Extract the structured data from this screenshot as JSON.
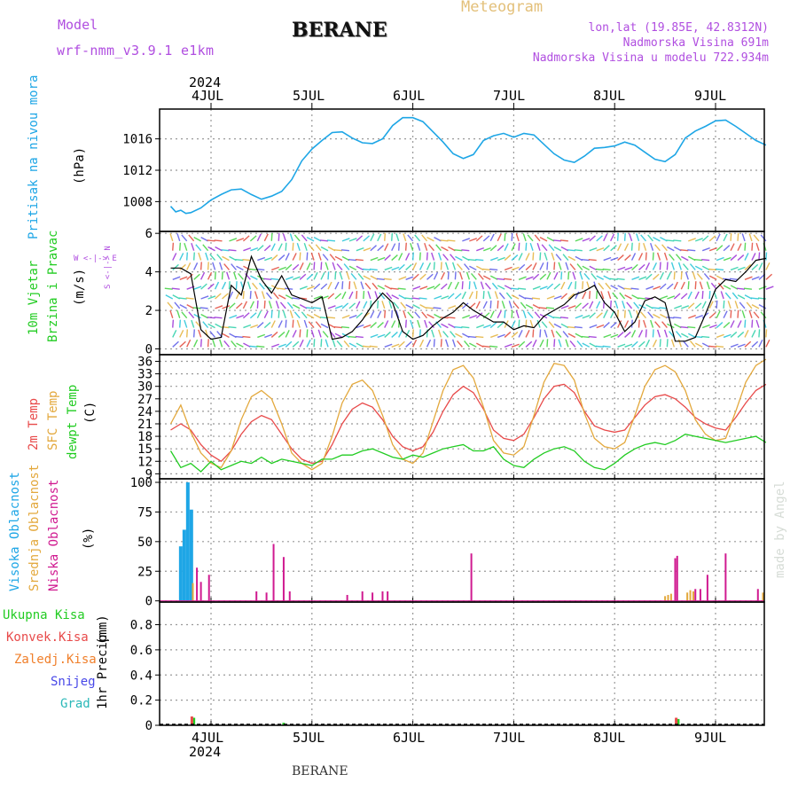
{
  "header": {
    "model_label": "Model",
    "model_name": "wrf-nmm_v3.9.1 e1km",
    "station": "BERANE",
    "meteogram_label": "Meteogram",
    "lonlat": "lon,lat (19.85E, 42.8312N)",
    "altitude": "Nadmorska Visina 691m",
    "model_altitude": "Nadmorska Visina u modelu 722.934m",
    "footer_station": "BERANE",
    "watermark": "made by Angel"
  },
  "time_axis": {
    "year": "2024",
    "day_labels": [
      "4JUL",
      "5JUL",
      "6JUL",
      "7JUL",
      "8JUL",
      "9JUL"
    ]
  },
  "colors": {
    "pressure": "#1ea6e6",
    "t2m": "#e84a4a",
    "sfc": "#e3a83c",
    "dewpt": "#22cc22",
    "high_cloud": "#1ea6e6",
    "mid_cloud": "#e3a83c",
    "low_cloud": "#d01a90",
    "total_precip": "#22cc22",
    "conv_precip": "#e84a4a",
    "frozen_precip": "#f07f2a",
    "snow": "#4848e8",
    "hail": "#2ab8b8",
    "model": "#b04ee0"
  },
  "chart_data": [
    {
      "type": "line",
      "name": "pressure",
      "ylabel": "Pritisak na nivou mora",
      "unit": "(hPa)",
      "ylim": [
        1004.2,
        1019.8
      ],
      "ticks": [
        "1008",
        "1012",
        "1016"
      ],
      "tick_values": [
        1008,
        1012,
        1016
      ],
      "x_days": [
        3.6,
        3.65,
        3.7,
        3.75,
        3.8,
        3.9,
        4.0,
        4.1,
        4.2,
        4.3,
        4.4,
        4.5,
        4.6,
        4.7,
        4.8,
        4.9,
        5.0,
        5.1,
        5.2,
        5.3,
        5.4,
        5.5,
        5.6,
        5.7,
        5.8,
        5.9,
        6.0,
        6.1,
        6.2,
        6.3,
        6.4,
        6.5,
        6.6,
        6.7,
        6.8,
        6.9,
        7.0,
        7.1,
        7.2,
        7.3,
        7.4,
        7.5,
        7.6,
        7.7,
        7.8,
        7.9,
        8.0,
        8.1,
        8.2,
        8.3,
        8.4,
        8.5,
        8.6,
        8.7,
        8.8,
        8.9,
        9.0,
        9.1,
        9.2,
        9.3,
        9.4,
        9.5
      ],
      "values": [
        1007.4,
        1006.7,
        1006.9,
        1006.5,
        1006.6,
        1007.2,
        1008.2,
        1008.9,
        1009.5,
        1009.6,
        1008.9,
        1008.3,
        1008.7,
        1009.3,
        1010.8,
        1013.2,
        1014.7,
        1015.8,
        1016.8,
        1016.9,
        1016.1,
        1015.5,
        1015.4,
        1016.0,
        1017.7,
        1018.7,
        1018.7,
        1018.2,
        1016.9,
        1015.6,
        1014.1,
        1013.5,
        1014.0,
        1015.8,
        1016.4,
        1016.7,
        1016.2,
        1016.7,
        1016.5,
        1015.3,
        1014.1,
        1013.3,
        1013.0,
        1013.8,
        1014.8,
        1014.9,
        1015.1,
        1015.6,
        1015.2,
        1014.3,
        1013.4,
        1013.1,
        1014.0,
        1016.1,
        1017.0,
        1017.6,
        1018.3,
        1018.4,
        1017.6,
        1016.7,
        1015.8,
        1015.2
      ]
    },
    {
      "type": "line",
      "name": "wind",
      "ylabel": "10m Vjetar",
      "ylabel2": "Brzina i Pravac",
      "unit": "(m/s)",
      "compass": "W <-|-> E",
      "compass_v": "S <-|-> N",
      "ylim": [
        -0.3,
        6.1
      ],
      "ticks": [
        "0",
        "2",
        "4",
        "6"
      ],
      "tick_values": [
        0,
        2,
        4,
        6
      ],
      "x_days": [
        3.6,
        3.7,
        3.8,
        3.9,
        4.0,
        4.1,
        4.2,
        4.3,
        4.4,
        4.5,
        4.6,
        4.7,
        4.8,
        4.9,
        5.0,
        5.1,
        5.2,
        5.3,
        5.4,
        5.5,
        5.6,
        5.7,
        5.8,
        5.9,
        6.0,
        6.1,
        6.2,
        6.3,
        6.4,
        6.5,
        6.6,
        6.7,
        6.8,
        6.9,
        7.0,
        7.1,
        7.2,
        7.3,
        7.4,
        7.5,
        7.6,
        7.7,
        7.8,
        7.9,
        8.0,
        8.1,
        8.2,
        8.3,
        8.4,
        8.5,
        8.6,
        8.7,
        8.8,
        8.9,
        9.0,
        9.1,
        9.2,
        9.3,
        9.4,
        9.5
      ],
      "values": [
        4.2,
        4.2,
        3.9,
        1.0,
        0.5,
        0.6,
        3.3,
        2.8,
        4.8,
        3.6,
        2.9,
        3.8,
        2.8,
        2.6,
        2.4,
        2.7,
        0.5,
        0.6,
        0.9,
        1.5,
        2.3,
        2.9,
        2.4,
        0.9,
        0.5,
        0.7,
        1.2,
        1.6,
        1.9,
        2.4,
        2.0,
        1.7,
        1.4,
        1.4,
        1.0,
        1.2,
        1.1,
        1.7,
        2.0,
        2.3,
        2.8,
        3.0,
        3.3,
        2.4,
        1.9,
        0.9,
        1.4,
        2.5,
        2.7,
        2.4,
        0.4,
        0.4,
        0.6,
        1.8,
        3.1,
        3.6,
        3.5,
        4.0,
        4.6,
        4.7
      ]
    },
    {
      "type": "line",
      "name": "temperature",
      "ylabel": "2m Temp",
      "ylabel2": "SFC Temp",
      "ylabel3": "dewpt Temp",
      "unit": "(C)",
      "ylim": [
        7.8,
        37.6
      ],
      "ticks": [
        "9",
        "12",
        "15",
        "18",
        "21",
        "24",
        "27",
        "30",
        "33",
        "36"
      ],
      "tick_values": [
        9,
        12,
        15,
        18,
        21,
        24,
        27,
        30,
        33,
        36
      ],
      "x_days": [
        3.6,
        3.7,
        3.8,
        3.9,
        4.0,
        4.1,
        4.2,
        4.3,
        4.4,
        4.5,
        4.6,
        4.7,
        4.8,
        4.9,
        5.0,
        5.1,
        5.2,
        5.3,
        5.4,
        5.5,
        5.6,
        5.7,
        5.8,
        5.9,
        6.0,
        6.1,
        6.2,
        6.3,
        6.4,
        6.5,
        6.6,
        6.7,
        6.8,
        6.9,
        7.0,
        7.1,
        7.2,
        7.3,
        7.4,
        7.5,
        7.6,
        7.7,
        7.8,
        7.9,
        8.0,
        8.1,
        8.2,
        8.3,
        8.4,
        8.5,
        8.6,
        8.7,
        8.8,
        8.9,
        9.0,
        9.1,
        9.2,
        9.3,
        9.4,
        9.5
      ],
      "series": [
        {
          "key": "t2m",
          "values": [
            19.5,
            21.0,
            19.5,
            16.0,
            13.5,
            12.0,
            14.5,
            18.5,
            21.5,
            23.0,
            22.0,
            18.5,
            15.0,
            12.5,
            11.5,
            12.0,
            16.0,
            21.0,
            24.5,
            26.0,
            25.0,
            22.0,
            18.0,
            15.5,
            14.5,
            15.5,
            19.0,
            24.0,
            28.0,
            30.0,
            28.5,
            24.5,
            19.5,
            17.5,
            17.0,
            18.5,
            22.5,
            27.0,
            30.0,
            30.5,
            28.5,
            24.0,
            20.5,
            19.5,
            19.0,
            19.5,
            22.5,
            25.5,
            27.5,
            28.0,
            27.0,
            25.0,
            22.5,
            21.0,
            20.0,
            19.5,
            22.5,
            26.0,
            29.0,
            30.5
          ]
        },
        {
          "key": "sfc",
          "values": [
            21.0,
            25.5,
            19.0,
            14.0,
            11.5,
            10.5,
            14.5,
            22.0,
            27.5,
            29.0,
            27.0,
            21.0,
            14.0,
            11.5,
            10.0,
            11.5,
            18.0,
            26.0,
            30.5,
            31.5,
            29.0,
            23.0,
            16.0,
            12.5,
            11.5,
            14.0,
            21.5,
            29.0,
            34.0,
            35.0,
            32.0,
            25.0,
            17.0,
            14.0,
            13.5,
            15.5,
            23.0,
            31.0,
            35.5,
            35.0,
            31.5,
            23.5,
            17.5,
            15.5,
            15.0,
            16.5,
            23.0,
            30.0,
            34.0,
            35.0,
            33.5,
            29.0,
            22.0,
            18.5,
            17.0,
            17.5,
            24.0,
            31.0,
            35.0,
            36.5
          ]
        },
        {
          "key": "dewpt",
          "values": [
            14.5,
            10.5,
            11.5,
            9.5,
            12.0,
            10.0,
            11.0,
            12.0,
            11.5,
            13.0,
            11.5,
            12.5,
            12.0,
            11.5,
            11.0,
            12.5,
            12.5,
            13.5,
            13.5,
            14.5,
            15.0,
            14.0,
            13.0,
            12.5,
            13.5,
            13.0,
            14.0,
            15.0,
            15.5,
            16.0,
            14.5,
            14.5,
            15.5,
            12.5,
            11.0,
            10.5,
            12.5,
            14.0,
            15.0,
            15.5,
            14.5,
            12.0,
            10.5,
            10.0,
            11.5,
            13.5,
            15.0,
            16.0,
            16.5,
            16.0,
            17.0,
            18.5,
            18.0,
            17.5,
            17.0,
            16.5,
            17.0,
            17.5,
            18.0,
            16.5
          ]
        }
      ]
    },
    {
      "type": "bar",
      "name": "cloud",
      "ylabel": "Visoka Oblacnost",
      "ylabel2": "Srednja Oblacnost",
      "ylabel3": "Niska Oblacnost",
      "unit": "(%)",
      "ylim": [
        -1,
        103
      ],
      "ticks": [
        "0",
        "25",
        "50",
        "75",
        "100"
      ],
      "tick_values": [
        0,
        25,
        50,
        75,
        100
      ],
      "series": [
        {
          "key": "high_cloud",
          "x_days": [
            3.7,
            3.735,
            3.77,
            3.805
          ],
          "values": [
            46,
            60,
            100,
            77
          ]
        },
        {
          "key": "mid_cloud",
          "x_days": [
            3.82,
            8.5,
            8.53,
            8.56,
            8.72,
            8.75,
            8.78,
            9.47
          ],
          "values": [
            15,
            4,
            5,
            6,
            7,
            9,
            8,
            7
          ]
        },
        {
          "key": "low_cloud",
          "x_days": [
            3.86,
            3.9,
            3.98,
            4.45,
            4.55,
            4.62,
            4.72,
            4.78,
            5.35,
            5.5,
            5.6,
            5.7,
            5.75,
            6.58,
            8.6,
            8.62,
            8.8,
            8.85,
            8.92,
            9.1,
            9.42
          ],
          "values": [
            28,
            16,
            22,
            8,
            7,
            48,
            37,
            8,
            5,
            8,
            7,
            8,
            8,
            40,
            36,
            38,
            10,
            10,
            22,
            40,
            10
          ]
        }
      ]
    },
    {
      "type": "bar",
      "name": "precipitation",
      "ylabel": "1hr Precip",
      "unit": "(mm)",
      "legend": [
        "Ukupna  Kisa",
        "Konvek.Kisa",
        "Zaledj.Kisa",
        "Snijeg",
        "Grad"
      ],
      "ylim": [
        0,
        0.98
      ],
      "ticks": [
        "0",
        "0.2",
        "0.4",
        "0.6",
        "0.8"
      ],
      "tick_values": [
        0,
        0.2,
        0.4,
        0.6,
        0.8
      ],
      "series": [
        {
          "key": "total_precip",
          "x_days": [
            3.83,
            4.72,
            8.63
          ],
          "values": [
            0.06,
            0.02,
            0.05
          ]
        },
        {
          "key": "conv_precip",
          "x_days": [
            3.81,
            8.61
          ],
          "values": [
            0.07,
            0.06
          ]
        }
      ]
    }
  ]
}
